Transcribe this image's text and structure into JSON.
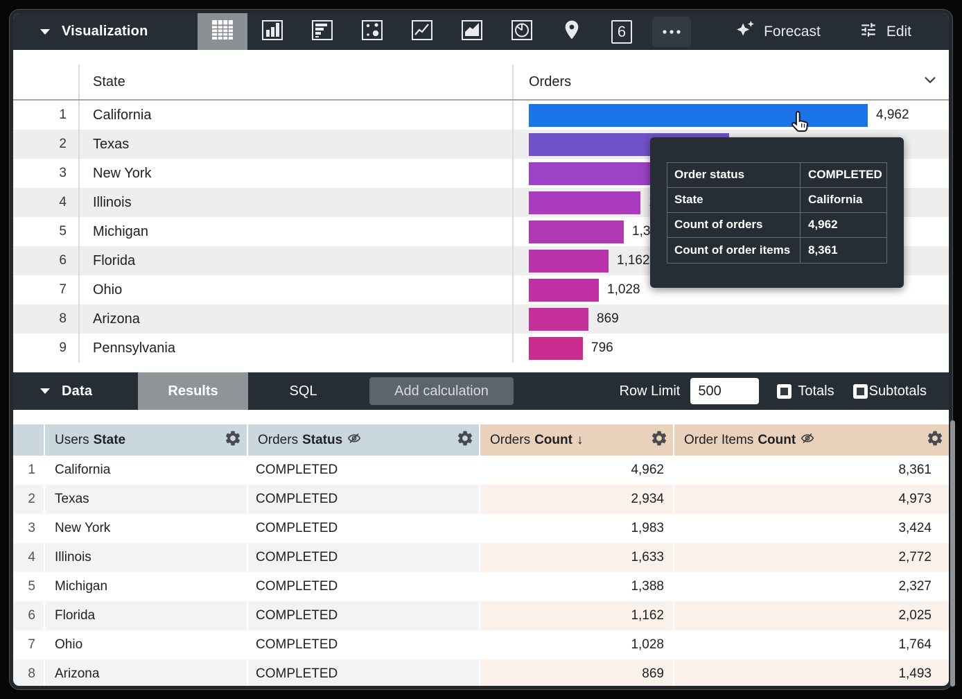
{
  "toolbar": {
    "visualization_label": "Visualization",
    "single_value_text": "6",
    "forecast_label": "Forecast",
    "edit_label": "Edit",
    "icons": [
      {
        "name": "table",
        "selected": true
      },
      {
        "name": "column-chart",
        "selected": false
      },
      {
        "name": "bar-chart-horizontal",
        "selected": false
      },
      {
        "name": "scatter-plot",
        "selected": false
      },
      {
        "name": "line-chart",
        "selected": false
      },
      {
        "name": "area-chart",
        "selected": false
      },
      {
        "name": "pie-chart",
        "selected": false
      },
      {
        "name": "map-pin",
        "selected": false
      },
      {
        "name": "single-value",
        "selected": false
      },
      {
        "name": "more-options",
        "selected": false
      }
    ]
  },
  "viz": {
    "columns": [
      "State",
      "Orders"
    ],
    "max_value": 4962,
    "rows": [
      {
        "n": 1,
        "state": "California",
        "value": "4,962",
        "value_num": 4962,
        "color": "#1b74e8"
      },
      {
        "n": 2,
        "state": "Texas",
        "value": "2,934",
        "value_num": 2934,
        "color": "#7152ca"
      },
      {
        "n": 3,
        "state": "New York",
        "value": "1,983",
        "value_num": 1983,
        "color": "#9d41c6"
      },
      {
        "n": 4,
        "state": "Illinois",
        "value": "1,633",
        "value_num": 1633,
        "color": "#a83cbd"
      },
      {
        "n": 5,
        "state": "Michigan",
        "value": "1,388",
        "value_num": 1388,
        "color": "#b138b3"
      },
      {
        "n": 6,
        "state": "Florida",
        "value": "1,162",
        "value_num": 1162,
        "color": "#b934aa"
      },
      {
        "n": 7,
        "state": "Ohio",
        "value": "1,028",
        "value_num": 1028,
        "color": "#bf31a2"
      },
      {
        "n": 8,
        "state": "Arizona",
        "value": "869",
        "value_num": 869,
        "color": "#c42f9a"
      },
      {
        "n": 9,
        "state": "Pennsylvania",
        "value": "796",
        "value_num": 796,
        "color": "#c92d90"
      }
    ]
  },
  "tooltip": {
    "rows": [
      {
        "label": "Order status",
        "value": "COMPLETED"
      },
      {
        "label": "State",
        "value": "California"
      },
      {
        "label": "Count of orders",
        "value": "4,962"
      },
      {
        "label": "Count of order items",
        "value": "8,361"
      }
    ]
  },
  "data_bar": {
    "label": "Data",
    "tabs": [
      "Results",
      "SQL"
    ],
    "active_tab": "Results",
    "add_calculation_label": "Add calculation",
    "row_limit_label": "Row Limit",
    "row_limit_value": "500",
    "totals_label": "Totals",
    "subtotals_label": "Subtotals"
  },
  "data_table": {
    "sort_arrow": "↓",
    "columns": [
      {
        "view": "Users",
        "field": "State"
      },
      {
        "view": "Orders",
        "field": "Status",
        "hidden_in_viz": true
      },
      {
        "view": "Orders",
        "field": "Count",
        "sorted": "desc"
      },
      {
        "view": "Order Items",
        "field": "Count",
        "hidden_in_viz": true
      }
    ],
    "rows": [
      {
        "n": 1,
        "state": "California",
        "status": "COMPLETED",
        "orders_count": "4,962",
        "order_items_count": "8,361"
      },
      {
        "n": 2,
        "state": "Texas",
        "status": "COMPLETED",
        "orders_count": "2,934",
        "order_items_count": "4,973"
      },
      {
        "n": 3,
        "state": "New York",
        "status": "COMPLETED",
        "orders_count": "1,983",
        "order_items_count": "3,424"
      },
      {
        "n": 4,
        "state": "Illinois",
        "status": "COMPLETED",
        "orders_count": "1,633",
        "order_items_count": "2,772"
      },
      {
        "n": 5,
        "state": "Michigan",
        "status": "COMPLETED",
        "orders_count": "1,388",
        "order_items_count": "2,327"
      },
      {
        "n": 6,
        "state": "Florida",
        "status": "COMPLETED",
        "orders_count": "1,162",
        "order_items_count": "2,025"
      },
      {
        "n": 7,
        "state": "Ohio",
        "status": "COMPLETED",
        "orders_count": "1,028",
        "order_items_count": "1,764"
      },
      {
        "n": 8,
        "state": "Arizona",
        "status": "COMPLETED",
        "orders_count": "869",
        "order_items_count": "1,493"
      }
    ]
  }
}
